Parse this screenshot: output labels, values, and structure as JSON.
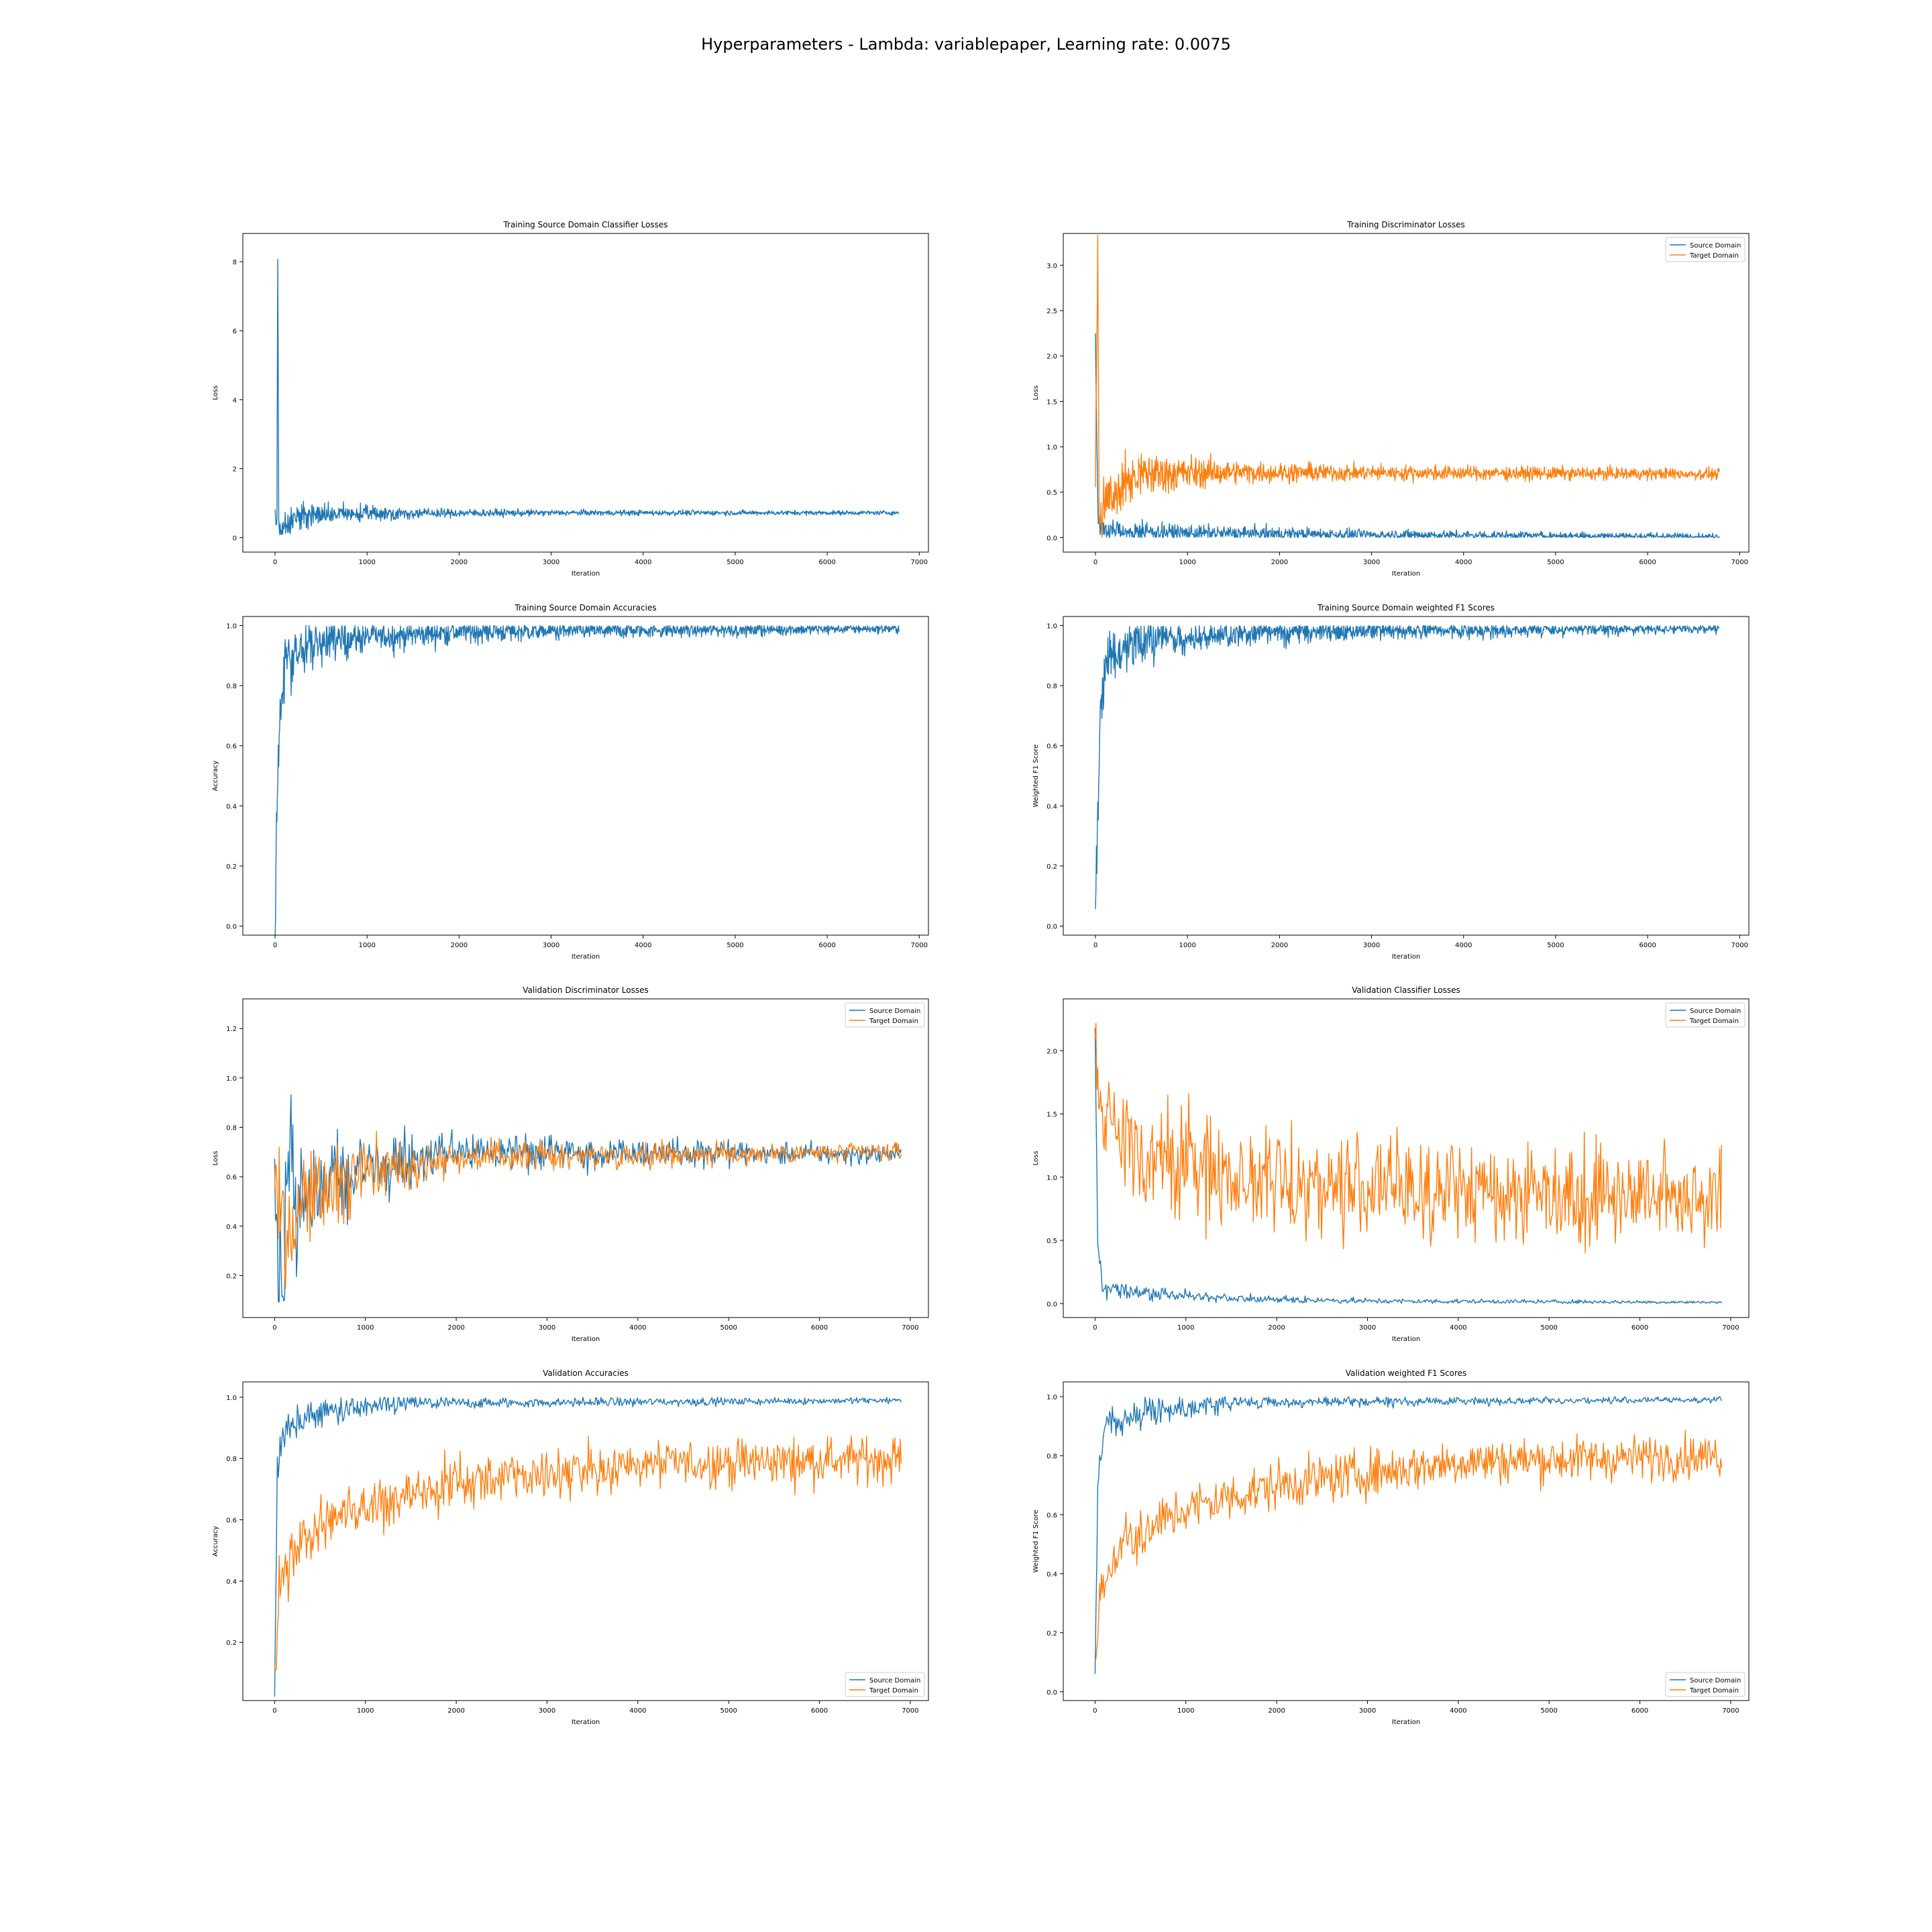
{
  "suptitle": "Hyperparameters - Lambda: variablepaper, Learning rate: 0.0075",
  "colors": {
    "source": "#1f77b4",
    "target": "#ff7f0e"
  },
  "chart_data": [
    {
      "type": "line",
      "title": "Training Source Domain Classifier Losses",
      "xlabel": "Iteration",
      "ylabel": "Loss",
      "xlim": [
        -350,
        7100
      ],
      "ylim": [
        -0.42,
        8.82
      ],
      "xticks": [
        0,
        1000,
        2000,
        3000,
        4000,
        5000,
        6000,
        7000
      ],
      "yticks": [
        0,
        2,
        4,
        6,
        8
      ],
      "legend": null,
      "series": [
        {
          "color": "#1f77b4",
          "n": 1360,
          "x_max": 6780,
          "anchors": [
            [
              0,
              0.7
            ],
            [
              20,
              0.3
            ],
            [
              30,
              8.5
            ],
            [
              40,
              0.2
            ],
            [
              100,
              0.4
            ],
            [
              300,
              0.65
            ],
            [
              1000,
              0.7
            ],
            [
              3000,
              0.72
            ],
            [
              6780,
              0.72
            ]
          ],
          "noise": [
            [
              0,
              0.3
            ],
            [
              200,
              0.35
            ],
            [
              600,
              0.25
            ],
            [
              1500,
              0.12
            ],
            [
              3000,
              0.07
            ],
            [
              6780,
              0.05
            ]
          ]
        }
      ]
    },
    {
      "type": "line",
      "title": "Training Discriminator Losses",
      "xlabel": "Iteration",
      "ylabel": "Loss",
      "xlim": [
        -350,
        7100
      ],
      "ylim": [
        -0.16,
        3.35
      ],
      "xticks": [
        0,
        1000,
        2000,
        3000,
        4000,
        5000,
        6000,
        7000
      ],
      "yticks": [
        0.0,
        0.5,
        1.0,
        1.5,
        2.0,
        2.5,
        3.0
      ],
      "legend": {
        "loc": "upper right",
        "entries": [
          "Source Domain",
          "Target Domain"
        ]
      },
      "series": [
        {
          "name": "Source Domain",
          "color": "#1f77b4",
          "n": 1360,
          "x_max": 6780,
          "anchors": [
            [
              0,
              2.2
            ],
            [
              15,
              1.0
            ],
            [
              30,
              0.15
            ],
            [
              100,
              0.08
            ],
            [
              1000,
              0.05
            ],
            [
              3000,
              0.03
            ],
            [
              6780,
              0.01
            ]
          ],
          "noise": [
            [
              0,
              0.1
            ],
            [
              500,
              0.08
            ],
            [
              3000,
              0.05
            ],
            [
              6780,
              0.03
            ]
          ],
          "floor": 0
        },
        {
          "name": "Target Domain",
          "color": "#ff7f0e",
          "n": 1360,
          "x_max": 6780,
          "anchors": [
            [
              0,
              0.6
            ],
            [
              25,
              3.2
            ],
            [
              40,
              0.2
            ],
            [
              150,
              0.45
            ],
            [
              500,
              0.7
            ],
            [
              1500,
              0.72
            ],
            [
              6780,
              0.7
            ]
          ],
          "noise": [
            [
              0,
              0.25
            ],
            [
              600,
              0.2
            ],
            [
              1500,
              0.1
            ],
            [
              3000,
              0.07
            ],
            [
              6780,
              0.05
            ]
          ],
          "floor": 0
        }
      ]
    },
    {
      "type": "line",
      "title": "Training Source Domain Accuracies",
      "xlabel": "Iteration",
      "ylabel": "Accuracy",
      "xlim": [
        -350,
        7100
      ],
      "ylim": [
        -0.03,
        1.03
      ],
      "xticks": [
        0,
        1000,
        2000,
        3000,
        4000,
        5000,
        6000,
        7000
      ],
      "yticks": [
        0.0,
        0.2,
        0.4,
        0.6,
        0.8,
        1.0
      ],
      "legend": null,
      "series": [
        {
          "color": "#1f77b4",
          "n": 1360,
          "x_max": 6780,
          "anchors": [
            [
              0,
              0.02
            ],
            [
              20,
              0.4
            ],
            [
              50,
              0.7
            ],
            [
              100,
              0.88
            ],
            [
              500,
              0.95
            ],
            [
              2000,
              0.98
            ],
            [
              6780,
              0.99
            ]
          ],
          "noise": [
            [
              0,
              0.1
            ],
            [
              200,
              0.08
            ],
            [
              1000,
              0.04
            ],
            [
              3000,
              0.025
            ],
            [
              6780,
              0.012
            ]
          ],
          "cap": 1.0
        }
      ]
    },
    {
      "type": "line",
      "title": "Training Source Domain weighted F1 Scores",
      "xlabel": "Iteration",
      "ylabel": "Weighted F1 Score",
      "xlim": [
        -350,
        7100
      ],
      "ylim": [
        -0.03,
        1.03
      ],
      "xticks": [
        0,
        1000,
        2000,
        3000,
        4000,
        5000,
        6000,
        7000
      ],
      "yticks": [
        0.0,
        0.2,
        0.4,
        0.6,
        0.8,
        1.0
      ],
      "legend": null,
      "series": [
        {
          "color": "#1f77b4",
          "n": 1360,
          "x_max": 6780,
          "anchors": [
            [
              0,
              0.01
            ],
            [
              20,
              0.35
            ],
            [
              50,
              0.68
            ],
            [
              100,
              0.87
            ],
            [
              500,
              0.95
            ],
            [
              2000,
              0.98
            ],
            [
              6780,
              0.99
            ]
          ],
          "noise": [
            [
              0,
              0.1
            ],
            [
              200,
              0.08
            ],
            [
              1000,
              0.04
            ],
            [
              3000,
              0.025
            ],
            [
              6780,
              0.012
            ]
          ],
          "cap": 1.0
        }
      ]
    },
    {
      "type": "line",
      "title": "Validation Discriminator Losses",
      "xlabel": "Iteration",
      "ylabel": "Loss",
      "xlim": [
        -350,
        7200
      ],
      "ylim": [
        0.03,
        1.32
      ],
      "xticks": [
        0,
        1000,
        2000,
        3000,
        4000,
        5000,
        6000,
        7000
      ],
      "yticks": [
        0.2,
        0.4,
        0.6,
        0.8,
        1.0,
        1.2
      ],
      "legend": {
        "loc": "upper right",
        "entries": [
          "Source Domain",
          "Target Domain"
        ]
      },
      "series": [
        {
          "name": "Source Domain",
          "color": "#1f77b4",
          "n": 690,
          "x_max": 6900,
          "anchors": [
            [
              0,
              0.7
            ],
            [
              50,
              0.2
            ],
            [
              100,
              0.1
            ],
            [
              150,
              0.6
            ],
            [
              300,
              0.5
            ],
            [
              1000,
              0.65
            ],
            [
              2000,
              0.7
            ],
            [
              6900,
              0.69
            ]
          ],
          "noise": [
            [
              0,
              0.3
            ],
            [
              300,
              0.25
            ],
            [
              1000,
              0.12
            ],
            [
              2000,
              0.06
            ],
            [
              6900,
              0.03
            ]
          ],
          "floor": 0.09
        },
        {
          "name": "Target Domain",
          "color": "#ff7f0e",
          "n": 690,
          "x_max": 6900,
          "anchors": [
            [
              0,
              0.7
            ],
            [
              50,
              0.4
            ],
            [
              150,
              0.3
            ],
            [
              300,
              0.5
            ],
            [
              1000,
              0.62
            ],
            [
              2000,
              0.68
            ],
            [
              6900,
              0.7
            ]
          ],
          "noise": [
            [
              0,
              0.25
            ],
            [
              300,
              0.2
            ],
            [
              1000,
              0.1
            ],
            [
              2000,
              0.05
            ],
            [
              6900,
              0.03
            ]
          ],
          "floor": 0.09
        }
      ]
    },
    {
      "type": "line",
      "title": "Validation Classifier Losses",
      "xlabel": "Iteration",
      "ylabel": "Loss",
      "xlim": [
        -350,
        7200
      ],
      "ylim": [
        -0.11,
        2.41
      ],
      "xticks": [
        0,
        1000,
        2000,
        3000,
        4000,
        5000,
        6000,
        7000
      ],
      "yticks": [
        0.0,
        0.5,
        1.0,
        1.5,
        2.0
      ],
      "legend": {
        "loc": "upper right",
        "entries": [
          "Source Domain",
          "Target Domain"
        ]
      },
      "series": [
        {
          "name": "Source Domain",
          "color": "#1f77b4",
          "n": 690,
          "x_max": 6900,
          "anchors": [
            [
              0,
              2.2
            ],
            [
              30,
              0.5
            ],
            [
              80,
              0.12
            ],
            [
              500,
              0.08
            ],
            [
              1500,
              0.04
            ],
            [
              3000,
              0.02
            ],
            [
              6900,
              0.01
            ]
          ],
          "noise": [
            [
              0,
              0.06
            ],
            [
              500,
              0.05
            ],
            [
              2000,
              0.02
            ],
            [
              6900,
              0.01
            ]
          ],
          "floor": 0
        },
        {
          "name": "Target Domain",
          "color": "#ff7f0e",
          "n": 690,
          "x_max": 6900,
          "anchors": [
            [
              0,
              2.2
            ],
            [
              50,
              1.5
            ],
            [
              300,
              1.2
            ],
            [
              1000,
              1.1
            ],
            [
              2000,
              0.95
            ],
            [
              4000,
              0.9
            ],
            [
              6900,
              0.85
            ]
          ],
          "noise": [
            [
              0,
              0.3
            ],
            [
              1000,
              0.35
            ],
            [
              6900,
              0.32
            ]
          ],
          "floor": 0.3
        }
      ]
    },
    {
      "type": "line",
      "title": "Validation Accuracies",
      "xlabel": "Iteration",
      "ylabel": "Accuracy",
      "xlim": [
        -350,
        7200
      ],
      "ylim": [
        0.01,
        1.05
      ],
      "xticks": [
        0,
        1000,
        2000,
        3000,
        4000,
        5000,
        6000,
        7000
      ],
      "yticks": [
        0.2,
        0.4,
        0.6,
        0.8,
        1.0
      ],
      "legend": {
        "loc": "lower right",
        "entries": [
          "Source Domain",
          "Target Domain"
        ]
      },
      "series": [
        {
          "name": "Source Domain",
          "color": "#1f77b4",
          "n": 690,
          "x_max": 6900,
          "anchors": [
            [
              0,
              0.05
            ],
            [
              30,
              0.75
            ],
            [
              100,
              0.9
            ],
            [
              500,
              0.95
            ],
            [
              1500,
              0.98
            ],
            [
              6900,
              0.99
            ]
          ],
          "noise": [
            [
              0,
              0.05
            ],
            [
              500,
              0.04
            ],
            [
              2000,
              0.015
            ],
            [
              6900,
              0.008
            ]
          ],
          "cap": 1.0
        },
        {
          "name": "Target Domain",
          "color": "#ff7f0e",
          "n": 690,
          "x_max": 6900,
          "anchors": [
            [
              0,
              0.05
            ],
            [
              50,
              0.4
            ],
            [
              300,
              0.55
            ],
            [
              1000,
              0.65
            ],
            [
              2000,
              0.72
            ],
            [
              4000,
              0.78
            ],
            [
              6900,
              0.8
            ]
          ],
          "noise": [
            [
              0,
              0.08
            ],
            [
              1000,
              0.07
            ],
            [
              6900,
              0.06
            ]
          ],
          "cap": 0.9
        }
      ]
    },
    {
      "type": "line",
      "title": "Validation weighted F1 Scores",
      "xlabel": "Iteration",
      "ylabel": "Weighted F1 Score",
      "xlim": [
        -350,
        7200
      ],
      "ylim": [
        -0.03,
        1.05
      ],
      "xticks": [
        0,
        1000,
        2000,
        3000,
        4000,
        5000,
        6000,
        7000
      ],
      "yticks": [
        0.0,
        0.2,
        0.4,
        0.6,
        0.8,
        1.0
      ],
      "legend": {
        "loc": "lower right",
        "entries": [
          "Source Domain",
          "Target Domain"
        ]
      },
      "series": [
        {
          "name": "Source Domain",
          "color": "#1f77b4",
          "n": 690,
          "x_max": 6900,
          "anchors": [
            [
              0,
              0.03
            ],
            [
              30,
              0.7
            ],
            [
              100,
              0.9
            ],
            [
              500,
              0.95
            ],
            [
              1500,
              0.98
            ],
            [
              6900,
              0.99
            ]
          ],
          "noise": [
            [
              0,
              0.05
            ],
            [
              500,
              0.04
            ],
            [
              2000,
              0.015
            ],
            [
              6900,
              0.008
            ]
          ],
          "cap": 1.0
        },
        {
          "name": "Target Domain",
          "color": "#ff7f0e",
          "n": 690,
          "x_max": 6900,
          "anchors": [
            [
              0,
              0.03
            ],
            [
              50,
              0.35
            ],
            [
              300,
              0.5
            ],
            [
              1000,
              0.62
            ],
            [
              2000,
              0.7
            ],
            [
              4000,
              0.78
            ],
            [
              6900,
              0.8
            ]
          ],
          "noise": [
            [
              0,
              0.08
            ],
            [
              1000,
              0.07
            ],
            [
              6900,
              0.06
            ]
          ],
          "cap": 0.9
        }
      ]
    }
  ]
}
